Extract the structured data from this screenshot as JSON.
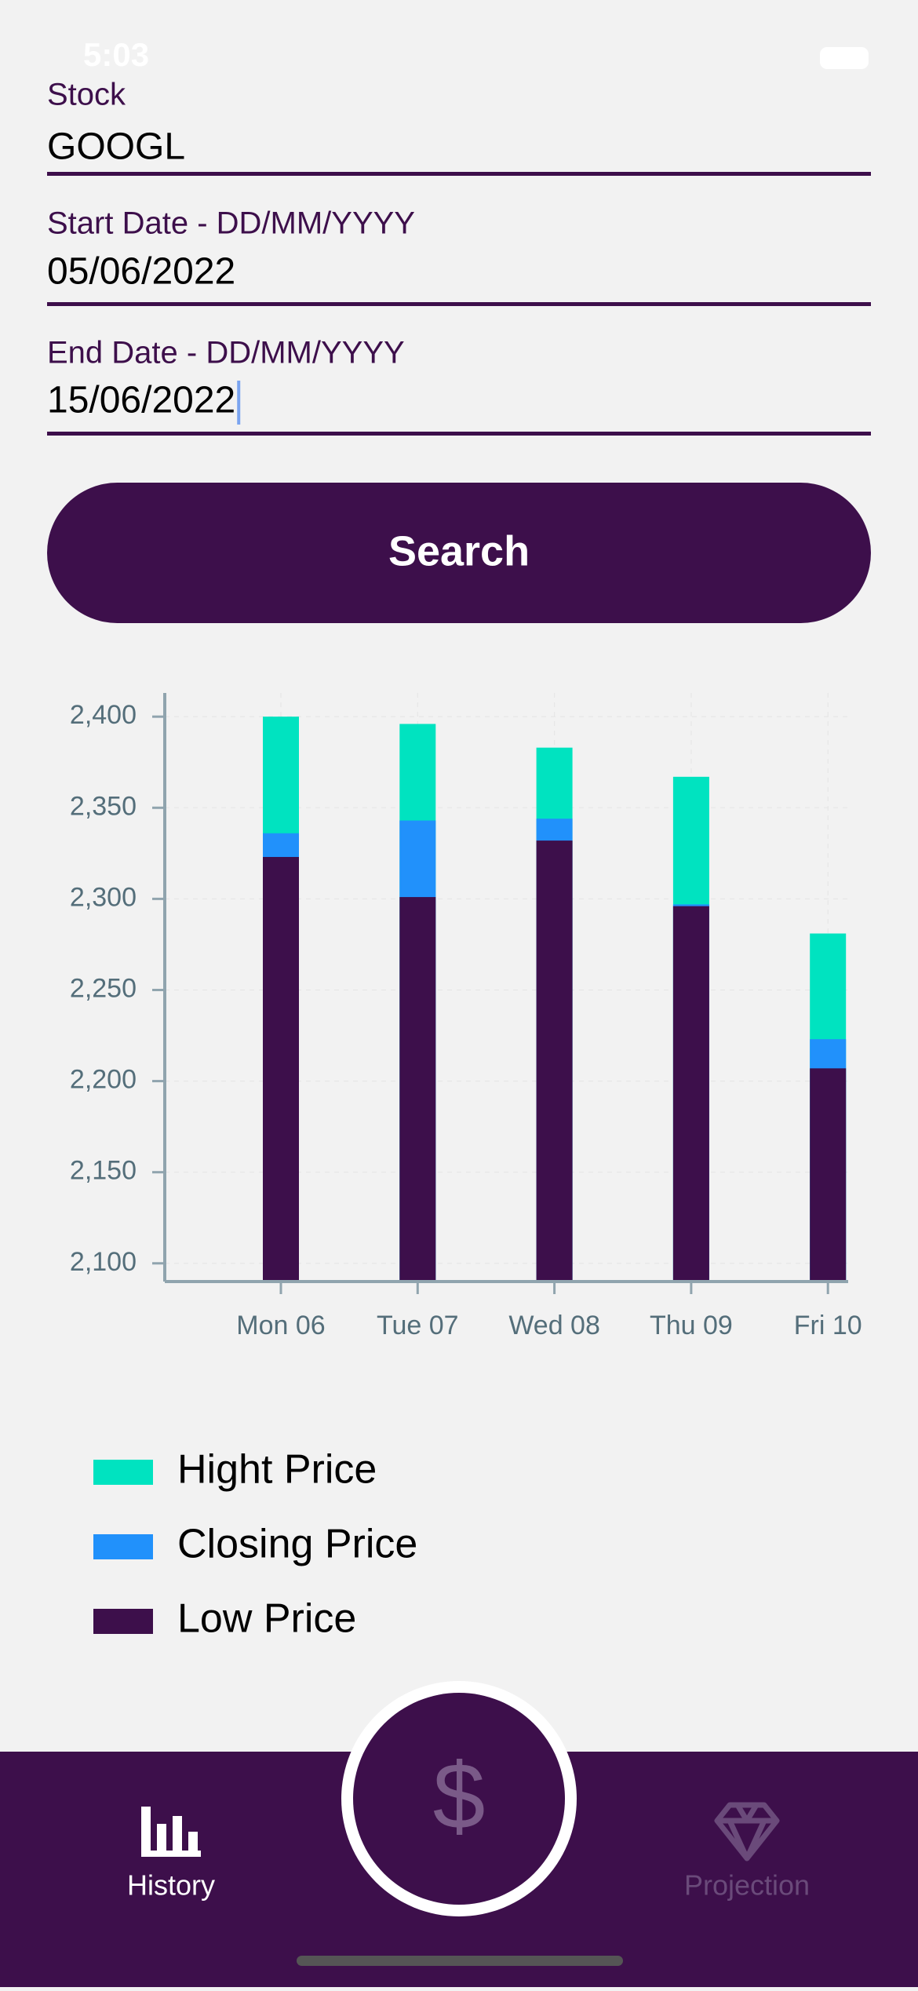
{
  "status_bar": {
    "time": "5:03"
  },
  "form": {
    "fields": [
      {
        "label": "Stock",
        "value": "GOOGL"
      },
      {
        "label": "Start Date - DD/MM/YYYY",
        "value": "05/06/2022"
      },
      {
        "label": "End Date - DD/MM/YYYY",
        "value": "15/06/2022"
      }
    ],
    "button": "Search"
  },
  "chart_data": {
    "type": "bar",
    "overlap": true,
    "categories": [
      "Mon 06",
      "Tue 07",
      "Wed 08",
      "Thu 09",
      "Fri 10"
    ],
    "series": [
      {
        "name": "Hight Price",
        "color": "#00e3c0",
        "values": [
          2400,
          2396,
          2383,
          2367,
          2281
        ]
      },
      {
        "name": "Closing Price",
        "color": "#2191fb",
        "values": [
          2336,
          2343,
          2344,
          2297,
          2223
        ]
      },
      {
        "name": "Low Price",
        "color": "#3d0f4b",
        "values": [
          2323,
          2301,
          2332,
          2296,
          2207
        ]
      }
    ],
    "ylim": [
      2090,
      2413
    ],
    "yticks": [
      {
        "value": 2100,
        "label": "2,100"
      },
      {
        "value": 2150,
        "label": "2,150"
      },
      {
        "value": 2200,
        "label": "2,200"
      },
      {
        "value": 2250,
        "label": "2,250"
      },
      {
        "value": 2300,
        "label": "2,300"
      },
      {
        "value": 2350,
        "label": "2,350"
      },
      {
        "value": 2400,
        "label": "2,400"
      }
    ],
    "grid": true
  },
  "tab_bar": {
    "items": [
      "History",
      "Projection"
    ],
    "center_icon": "$"
  }
}
